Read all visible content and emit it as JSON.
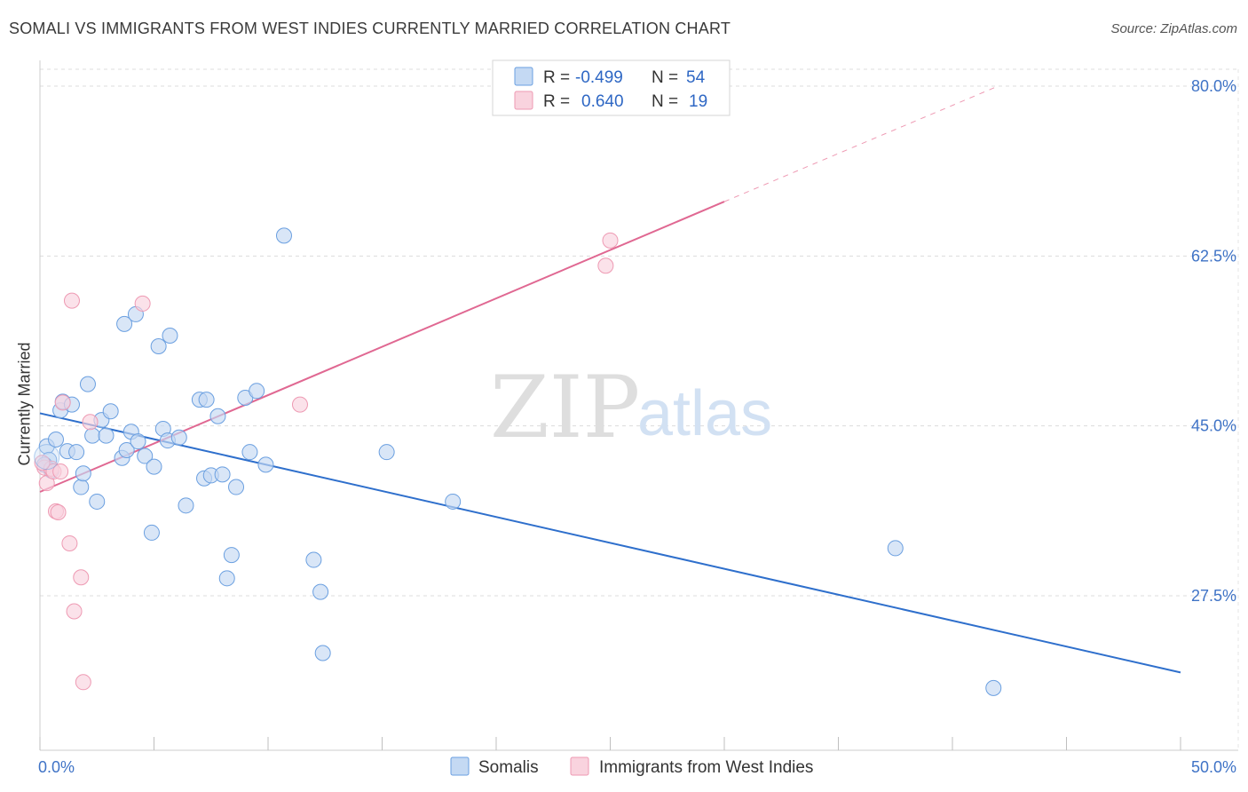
{
  "title": "SOMALI VS IMMIGRANTS FROM WEST INDIES CURRENTLY MARRIED CORRELATION CHART",
  "source": "Source: ZipAtlas.com",
  "watermark": {
    "zip": "ZIP",
    "atlas": "atlas"
  },
  "colors": {
    "somali": "#6a9fe0",
    "somali_fill": "#c4d9f3",
    "somali_line": "#2e6fcc",
    "westindies": "#ee9ab3",
    "westindies_fill": "#f9d3de",
    "westindies_line": "#e06892",
    "axis_label": "#3f73c6"
  },
  "legend": {
    "rows": [
      {
        "r_label": "R =",
        "r_value": "-0.499",
        "n_label": "N =",
        "n_value": "54"
      },
      {
        "r_label": "R =",
        "r_value": "0.640",
        "n_label": "N =",
        "n_value": "19"
      }
    ]
  },
  "chart_data": {
    "type": "scatter",
    "title": "SOMALI VS IMMIGRANTS FROM WEST INDIES CURRENTLY MARRIED CORRELATION CHART",
    "xlabel": "",
    "ylabel": "Currently Married",
    "xlim": [
      0,
      50
    ],
    "ylim": [
      10,
      80
    ],
    "x_tick_labels": [
      "0.0%",
      "50.0%"
    ],
    "y_ticks": [
      27.5,
      45.0,
      62.5,
      80.0
    ],
    "y_tick_labels": [
      "27.5%",
      "45.0%",
      "62.5%",
      "80.0%"
    ],
    "grid": true,
    "legend_position": "top-center",
    "series": [
      {
        "name": "Somalis",
        "trend": {
          "x0": 0,
          "y0": 46.3,
          "x1": 50,
          "y1": 19.6
        },
        "points": [
          [
            0.3,
            42.9
          ],
          [
            0.4,
            41.5
          ],
          [
            0.5,
            40.4
          ],
          [
            0.7,
            43.6
          ],
          [
            0.9,
            46.6
          ],
          [
            1.0,
            47.5
          ],
          [
            1.2,
            42.4
          ],
          [
            1.4,
            47.2
          ],
          [
            1.6,
            42.3
          ],
          [
            1.8,
            38.7
          ],
          [
            1.9,
            40.1
          ],
          [
            2.1,
            49.3
          ],
          [
            2.3,
            44.0
          ],
          [
            2.5,
            37.2
          ],
          [
            2.7,
            45.6
          ],
          [
            2.9,
            44.0
          ],
          [
            3.1,
            46.5
          ],
          [
            3.6,
            41.7
          ],
          [
            3.7,
            55.5
          ],
          [
            3.8,
            42.5
          ],
          [
            4.0,
            44.4
          ],
          [
            4.2,
            56.5
          ],
          [
            4.3,
            43.4
          ],
          [
            4.6,
            41.9
          ],
          [
            4.9,
            34.0
          ],
          [
            5.0,
            40.8
          ],
          [
            5.2,
            53.2
          ],
          [
            5.4,
            44.7
          ],
          [
            5.6,
            43.5
          ],
          [
            5.7,
            54.3
          ],
          [
            6.1,
            43.8
          ],
          [
            6.4,
            36.8
          ],
          [
            7.0,
            47.7
          ],
          [
            7.2,
            39.6
          ],
          [
            7.3,
            47.7
          ],
          [
            7.5,
            39.9
          ],
          [
            7.8,
            46.0
          ],
          [
            8.0,
            40.0
          ],
          [
            8.2,
            29.3
          ],
          [
            8.4,
            31.7
          ],
          [
            8.6,
            38.7
          ],
          [
            9.0,
            47.9
          ],
          [
            9.2,
            42.3
          ],
          [
            9.5,
            48.6
          ],
          [
            9.9,
            41.0
          ],
          [
            10.7,
            64.6
          ],
          [
            12.0,
            31.2
          ],
          [
            12.3,
            27.9
          ],
          [
            12.4,
            21.6
          ],
          [
            15.2,
            42.3
          ],
          [
            18.1,
            37.2
          ],
          [
            37.5,
            32.4
          ],
          [
            41.8,
            18.0
          ],
          [
            0.2,
            41.0
          ]
        ]
      },
      {
        "name": "Immigrants from West Indies",
        "trend": {
          "x0": 0,
          "y0": 38.2,
          "x1": 30,
          "y1": 68.1
        },
        "trend_dashed": {
          "x0": 30,
          "y0": 68.1,
          "x1": 42,
          "y1": 80.0
        },
        "points": [
          [
            0.2,
            40.7
          ],
          [
            0.3,
            39.1
          ],
          [
            0.5,
            40.6
          ],
          [
            0.6,
            40.3
          ],
          [
            0.7,
            36.2
          ],
          [
            0.8,
            36.1
          ],
          [
            0.9,
            40.3
          ],
          [
            1.0,
            47.4
          ],
          [
            1.3,
            32.9
          ],
          [
            1.4,
            57.9
          ],
          [
            1.5,
            25.9
          ],
          [
            1.8,
            29.4
          ],
          [
            1.9,
            18.6
          ],
          [
            2.2,
            45.4
          ],
          [
            4.5,
            57.6
          ],
          [
            11.4,
            47.2
          ],
          [
            24.8,
            61.5
          ],
          [
            25.0,
            64.1
          ],
          [
            0.1,
            41.2
          ]
        ]
      }
    ]
  }
}
